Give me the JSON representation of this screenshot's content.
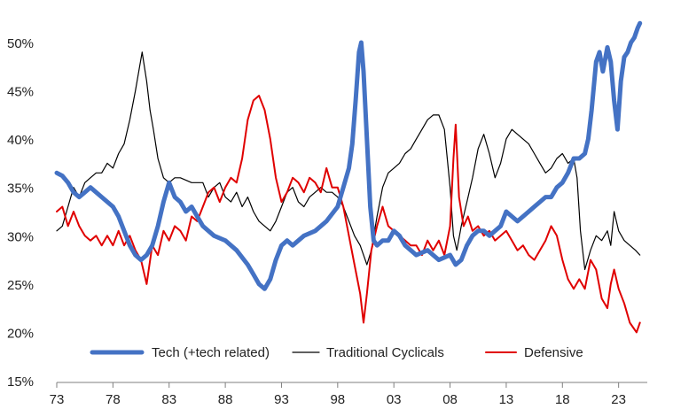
{
  "chart_data": {
    "type": "line",
    "title": "",
    "xlabel": "",
    "ylabel": "",
    "xlim": [
      1973,
      2025
    ],
    "ylim": [
      15,
      52
    ],
    "grid": false,
    "legend_position": "bottom-inside",
    "x_ticks": [
      {
        "value": 1973,
        "label": "73"
      },
      {
        "value": 1978,
        "label": "78"
      },
      {
        "value": 1983,
        "label": "83"
      },
      {
        "value": 1988,
        "label": "88"
      },
      {
        "value": 1993,
        "label": "93"
      },
      {
        "value": 1998,
        "label": "98"
      },
      {
        "value": 2003,
        "label": "03"
      },
      {
        "value": 2008,
        "label": "08"
      },
      {
        "value": 2013,
        "label": "13"
      },
      {
        "value": 2018,
        "label": "18"
      },
      {
        "value": 2023,
        "label": "23"
      }
    ],
    "y_ticks": [
      {
        "value": 15,
        "label": "15%"
      },
      {
        "value": 20,
        "label": "20%"
      },
      {
        "value": 25,
        "label": "25%"
      },
      {
        "value": 30,
        "label": "30%"
      },
      {
        "value": 35,
        "label": "35%"
      },
      {
        "value": 40,
        "label": "40%"
      },
      {
        "value": 45,
        "label": "45%"
      },
      {
        "value": 50,
        "label": "50%"
      }
    ],
    "series": [
      {
        "name": "Tech (+tech related)",
        "color": "#4472c4",
        "stroke_width": 5,
        "x": [
          1973.0,
          1973.5,
          1974.0,
          1974.5,
          1975.0,
          1975.5,
          1976.0,
          1977.0,
          1978.0,
          1978.5,
          1979.0,
          1979.5,
          1980.0,
          1980.5,
          1981.0,
          1981.5,
          1982.0,
          1982.5,
          1983.0,
          1983.5,
          1984.0,
          1984.5,
          1985.0,
          1985.5,
          1986.0,
          1987.0,
          1988.0,
          1989.0,
          1990.0,
          1990.5,
          1991.0,
          1991.5,
          1992.0,
          1992.5,
          1993.0,
          1993.5,
          1994.0,
          1995.0,
          1996.0,
          1997.0,
          1998.0,
          1998.5,
          1999.0,
          1999.3,
          1999.6,
          1999.9,
          2000.1,
          2000.3,
          2000.6,
          2000.9,
          2001.2,
          2001.5,
          2002.0,
          2002.5,
          2003.0,
          2003.5,
          2004.0,
          2005.0,
          2006.0,
          2007.0,
          2008.0,
          2008.5,
          2009.0,
          2009.5,
          2010.0,
          2010.5,
          2011.0,
          2011.5,
          2012.0,
          2012.5,
          2013.0,
          2013.5,
          2014.0,
          2014.5,
          2015.0,
          2015.5,
          2016.0,
          2016.5,
          2017.0,
          2017.5,
          2018.0,
          2018.5,
          2019.0,
          2019.5,
          2020.0,
          2020.3,
          2020.6,
          2021.0,
          2021.3,
          2021.6,
          2022.0,
          2022.3,
          2022.6,
          2022.9,
          2023.2,
          2023.5,
          2023.8,
          2024.1,
          2024.4,
          2024.7,
          2024.9
        ],
        "values": [
          36.5,
          36.2,
          35.5,
          34.5,
          34.0,
          34.5,
          35.0,
          34.0,
          33.0,
          32.0,
          30.5,
          29.0,
          28.0,
          27.5,
          28.0,
          29.0,
          31.0,
          33.5,
          35.5,
          34.0,
          33.5,
          32.5,
          33.0,
          32.0,
          31.0,
          30.0,
          29.5,
          28.5,
          27.0,
          26.0,
          25.0,
          24.5,
          25.5,
          27.5,
          29.0,
          29.5,
          29.0,
          30.0,
          30.5,
          31.5,
          33.0,
          35.0,
          37.0,
          39.5,
          44.0,
          49.0,
          50.0,
          47.0,
          40.0,
          33.0,
          29.5,
          29.0,
          29.5,
          29.5,
          30.5,
          30.0,
          29.0,
          28.0,
          28.5,
          27.5,
          28.0,
          27.0,
          27.5,
          29.0,
          30.0,
          30.5,
          30.5,
          30.0,
          30.5,
          31.0,
          32.5,
          32.0,
          31.5,
          32.0,
          32.5,
          33.0,
          33.5,
          34.0,
          34.0,
          35.0,
          35.5,
          36.5,
          38.0,
          38.0,
          38.5,
          40.0,
          43.0,
          48.0,
          49.0,
          47.0,
          49.5,
          48.0,
          44.0,
          41.0,
          46.0,
          48.5,
          49.0,
          50.0,
          50.5,
          51.5,
          52.0
        ]
      },
      {
        "name": "Traditional Cyclicals",
        "color": "#000000",
        "stroke_width": 1.2,
        "x": [
          1973.0,
          1973.5,
          1974.0,
          1974.5,
          1975.0,
          1975.5,
          1976.0,
          1976.5,
          1977.0,
          1977.5,
          1978.0,
          1978.5,
          1979.0,
          1979.5,
          1980.0,
          1980.3,
          1980.6,
          1981.0,
          1981.3,
          1981.6,
          1982.0,
          1982.5,
          1983.0,
          1983.5,
          1984.0,
          1985.0,
          1986.0,
          1986.5,
          1987.0,
          1987.5,
          1988.0,
          1988.5,
          1989.0,
          1989.5,
          1990.0,
          1990.5,
          1991.0,
          1991.5,
          1992.0,
          1992.5,
          1993.0,
          1993.5,
          1994.0,
          1994.5,
          1995.0,
          1995.5,
          1996.0,
          1996.5,
          1997.0,
          1997.5,
          1998.0,
          1998.5,
          1999.0,
          1999.5,
          2000.0,
          2000.3,
          2000.6,
          2001.0,
          2001.5,
          2002.0,
          2002.5,
          2003.0,
          2003.5,
          2004.0,
          2004.5,
          2005.0,
          2005.5,
          2006.0,
          2006.5,
          2007.0,
          2007.5,
          2008.0,
          2008.3,
          2008.6,
          2009.0,
          2009.5,
          2010.0,
          2010.5,
          2011.0,
          2011.5,
          2012.0,
          2012.5,
          2013.0,
          2013.5,
          2014.0,
          2014.5,
          2015.0,
          2015.5,
          2016.0,
          2016.5,
          2017.0,
          2017.5,
          2018.0,
          2018.5,
          2019.0,
          2019.3,
          2019.6,
          2020.0,
          2020.5,
          2021.0,
          2021.5,
          2022.0,
          2022.3,
          2022.6,
          2023.0,
          2023.5,
          2024.0,
          2024.5,
          2024.9
        ],
        "values": [
          30.5,
          31.0,
          33.0,
          35.0,
          34.0,
          35.5,
          36.0,
          36.5,
          36.5,
          37.5,
          37.0,
          38.5,
          39.5,
          42.0,
          45.0,
          47.0,
          49.0,
          46.0,
          43.0,
          41.0,
          38.0,
          36.0,
          35.5,
          36.0,
          36.0,
          35.5,
          35.5,
          34.0,
          35.0,
          35.5,
          34.0,
          33.5,
          34.5,
          33.0,
          34.0,
          32.5,
          31.5,
          31.0,
          30.5,
          31.5,
          33.0,
          34.5,
          35.0,
          33.5,
          33.0,
          34.0,
          34.5,
          35.0,
          34.5,
          34.5,
          34.0,
          33.0,
          31.5,
          30.0,
          29.0,
          28.0,
          27.0,
          28.5,
          32.0,
          35.0,
          36.5,
          37.0,
          37.5,
          38.5,
          39.0,
          40.0,
          41.0,
          42.0,
          42.5,
          42.5,
          41.0,
          35.0,
          30.0,
          28.5,
          31.0,
          33.5,
          36.0,
          39.0,
          40.5,
          38.5,
          36.0,
          37.5,
          40.0,
          41.0,
          40.5,
          40.0,
          39.5,
          38.5,
          37.5,
          36.5,
          37.0,
          38.0,
          38.5,
          37.5,
          38.0,
          36.0,
          30.5,
          26.5,
          28.5,
          30.0,
          29.5,
          30.5,
          29.0,
          32.5,
          30.5,
          29.5,
          29.0,
          28.5,
          28.0
        ]
      },
      {
        "name": "Defensive",
        "color": "#e00000",
        "stroke_width": 2,
        "x": [
          1973.0,
          1973.5,
          1974.0,
          1974.5,
          1975.0,
          1975.5,
          1976.0,
          1976.5,
          1977.0,
          1977.5,
          1978.0,
          1978.5,
          1979.0,
          1979.5,
          1980.0,
          1980.5,
          1981.0,
          1981.5,
          1982.0,
          1982.5,
          1983.0,
          1983.5,
          1984.0,
          1984.5,
          1985.0,
          1985.5,
          1986.0,
          1986.5,
          1987.0,
          1987.5,
          1988.0,
          1988.5,
          1989.0,
          1989.5,
          1990.0,
          1990.5,
          1991.0,
          1991.5,
          1992.0,
          1992.5,
          1993.0,
          1993.5,
          1994.0,
          1994.5,
          1995.0,
          1995.5,
          1996.0,
          1996.5,
          1997.0,
          1997.5,
          1998.0,
          1998.5,
          1999.0,
          1999.5,
          2000.0,
          2000.3,
          2000.6,
          2001.0,
          2001.5,
          2002.0,
          2002.5,
          2003.0,
          2003.5,
          2004.0,
          2004.5,
          2005.0,
          2005.5,
          2006.0,
          2006.5,
          2007.0,
          2007.5,
          2008.0,
          2008.3,
          2008.5,
          2008.8,
          2009.2,
          2009.6,
          2010.0,
          2010.5,
          2011.0,
          2011.5,
          2012.0,
          2012.5,
          2013.0,
          2013.5,
          2014.0,
          2014.5,
          2015.0,
          2015.5,
          2016.0,
          2016.5,
          2017.0,
          2017.5,
          2018.0,
          2018.5,
          2019.0,
          2019.5,
          2020.0,
          2020.5,
          2021.0,
          2021.5,
          2022.0,
          2022.3,
          2022.6,
          2023.0,
          2023.5,
          2024.0,
          2024.3,
          2024.6,
          2024.9
        ],
        "values": [
          32.5,
          33.0,
          31.0,
          32.5,
          31.0,
          30.0,
          29.5,
          30.0,
          29.0,
          30.0,
          29.0,
          30.5,
          29.0,
          30.0,
          28.5,
          27.5,
          25.0,
          29.0,
          28.0,
          30.5,
          29.5,
          31.0,
          30.5,
          29.5,
          32.0,
          31.5,
          33.0,
          34.5,
          35.0,
          33.5,
          35.0,
          36.0,
          35.5,
          38.0,
          42.0,
          44.0,
          44.5,
          43.0,
          40.0,
          36.0,
          33.5,
          34.5,
          36.0,
          35.5,
          34.5,
          36.0,
          35.5,
          34.5,
          37.0,
          35.0,
          35.0,
          33.0,
          30.0,
          27.0,
          24.0,
          21.0,
          24.0,
          28.5,
          31.0,
          33.0,
          31.0,
          30.5,
          30.0,
          29.5,
          29.0,
          29.0,
          28.0,
          29.5,
          28.5,
          29.5,
          28.0,
          31.0,
          38.0,
          41.5,
          34.0,
          31.0,
          32.0,
          30.5,
          31.0,
          30.0,
          30.5,
          29.5,
          30.0,
          30.5,
          29.5,
          28.5,
          29.0,
          28.0,
          27.5,
          28.5,
          29.5,
          31.0,
          30.0,
          27.5,
          25.5,
          24.5,
          25.5,
          24.5,
          27.5,
          26.5,
          23.5,
          22.5,
          25.0,
          26.5,
          24.5,
          23.0,
          21.0,
          20.5,
          20.0,
          21.0
        ]
      }
    ]
  }
}
